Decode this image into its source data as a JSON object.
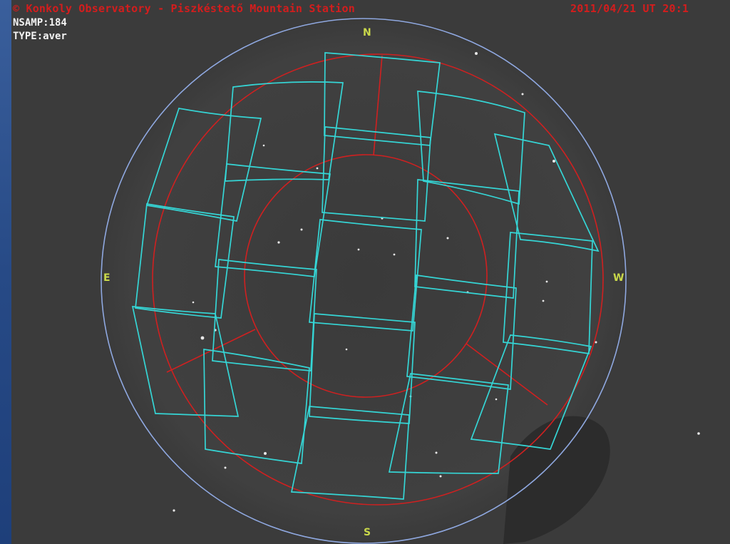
{
  "header": {
    "observatory": "© Konkoly Observatory - Piszkéstető Mountain Station",
    "datetime": "2011/04/21 UT 20:1"
  },
  "info": {
    "nsamp_label": "NSAMP:184",
    "type_label": "TYPE:aver"
  },
  "directions": {
    "north": "N",
    "south": "S",
    "east": "E",
    "west": "W"
  },
  "colors": {
    "background": "#2e4f88",
    "sky": "#3b3b3b",
    "horizon_circle": "#8fa8e0",
    "altitude_circles": "#d02020",
    "fields": "#35d6d6",
    "header_text": "#d41d1d",
    "direction_labels": "#c9d84a"
  }
}
